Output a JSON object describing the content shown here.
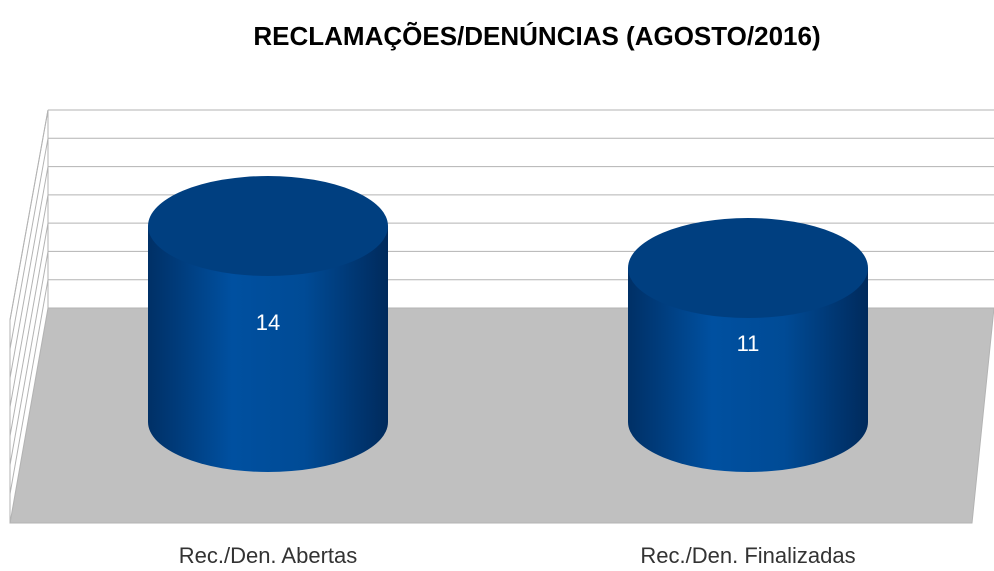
{
  "chart_data": {
    "type": "cylinder",
    "title": "RECLAMAÇÕES/DENÚNCIAS (AGOSTO/2016)",
    "categories": [
      "Rec./Den. Abertas",
      "Rec./Den. Finalizadas"
    ],
    "values": [
      14,
      11
    ],
    "color": "#004a94",
    "ylim": [
      0,
      14
    ],
    "yticks": [
      0,
      2,
      4,
      6,
      8,
      10,
      12,
      14
    ],
    "grid": true
  }
}
